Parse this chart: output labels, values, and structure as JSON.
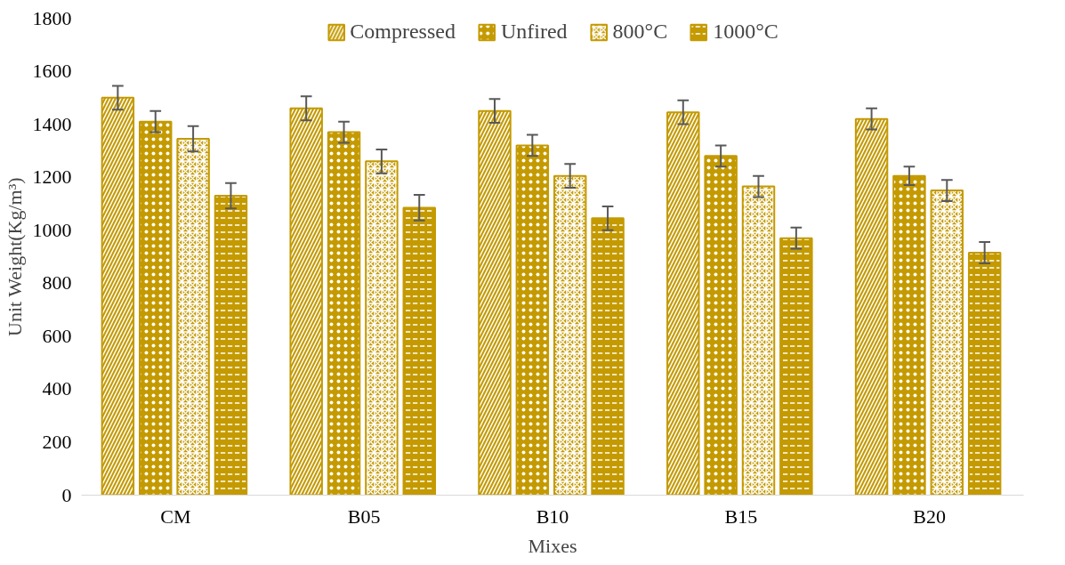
{
  "chart_data": {
    "type": "bar",
    "xlabel": "Mixes",
    "ylabel": "Unit Weight(Kg/m³)",
    "categories": [
      "CM",
      "B05",
      "B10",
      "B15",
      "B20"
    ],
    "series": [
      {
        "name": "Compressed",
        "color": "#c49a00",
        "values": [
          1500,
          1460,
          1450,
          1445,
          1420
        ],
        "errors": [
          45,
          45,
          45,
          45,
          40
        ]
      },
      {
        "name": "Unfired",
        "color": "#c49a00",
        "values": [
          1410,
          1370,
          1320,
          1280,
          1205
        ],
        "errors": [
          40,
          40,
          40,
          40,
          35
        ]
      },
      {
        "name": "800°C",
        "color": "#c49a00",
        "values": [
          1345,
          1260,
          1205,
          1165,
          1150
        ],
        "errors": [
          48,
          45,
          45,
          40,
          40
        ]
      },
      {
        "name": "1000°C",
        "color": "#c49a00",
        "values": [
          1130,
          1085,
          1045,
          970,
          915
        ],
        "errors": [
          48,
          48,
          45,
          40,
          40
        ]
      }
    ],
    "ylim": [
      0,
      1800
    ],
    "yticks": [
      0,
      200,
      400,
      600,
      800,
      1000,
      1200,
      1400,
      1600,
      1800
    ],
    "grid": false,
    "legend": "top"
  }
}
